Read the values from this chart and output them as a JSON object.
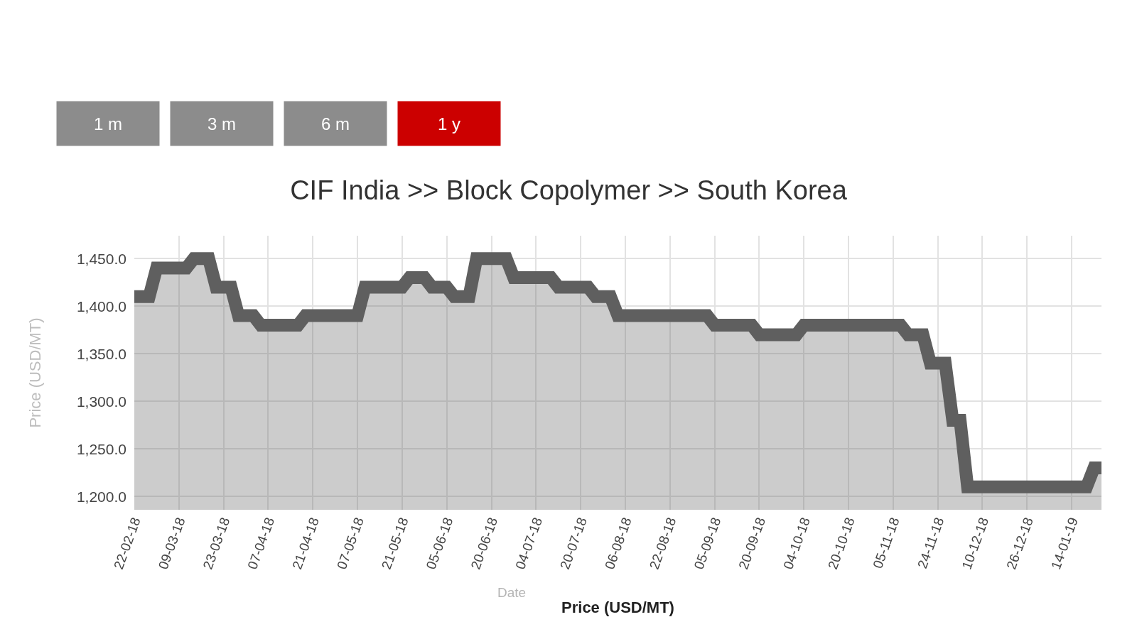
{
  "chart_data": [
    {
      "type": "other",
      "annotations": [
        "1 m",
        "3 m",
        "6 m",
        "1 y"
      ],
      "colors": [
        "#8c8c8c",
        "#8c8c8c",
        "#8c8c8c",
        "#cc0000"
      ]
    },
    {
      "type": "area",
      "title": "CIF India >> Block Copolymer >> South Korea",
      "xlabel": "Price (USD/MT)",
      "ylabel": "Price (USD/MT)",
      "annotations": [
        "Date"
      ],
      "categories": [
        "22-02-18",
        null,
        null,
        null,
        null,
        null,
        "09-03-18",
        null,
        null,
        null,
        null,
        null,
        "23-03-18",
        null,
        null,
        null,
        null,
        null,
        "07-04-18",
        null,
        null,
        null,
        null,
        null,
        "21-04-18",
        null,
        null,
        null,
        null,
        null,
        "07-05-18",
        null,
        null,
        null,
        null,
        null,
        "21-05-18",
        null,
        null,
        null,
        null,
        null,
        "05-06-18",
        null,
        null,
        null,
        null,
        null,
        "20-06-18",
        null,
        null,
        null,
        null,
        null,
        "04-07-18",
        null,
        null,
        null,
        null,
        null,
        "20-07-18",
        null,
        null,
        null,
        null,
        null,
        "06-08-18",
        null,
        null,
        null,
        null,
        null,
        "22-08-18",
        null,
        null,
        null,
        null,
        null,
        "05-09-18",
        null,
        null,
        null,
        null,
        null,
        "20-09-18",
        null,
        null,
        null,
        null,
        null,
        "04-10-18",
        null,
        null,
        null,
        null,
        null,
        "20-10-18",
        null,
        null,
        null,
        null,
        null,
        "05-11-18",
        null,
        null,
        null,
        null,
        null,
        "24-11-18",
        null,
        null,
        null,
        null,
        null,
        "10-12-18",
        null,
        null,
        null,
        null,
        null,
        "26-12-18",
        null,
        null,
        null,
        null,
        null,
        "14-01-19",
        null,
        null,
        null,
        null
      ],
      "values": [
        1410,
        1410,
        1410,
        1440,
        1440,
        1440,
        1440,
        1440,
        1450,
        1450,
        1450,
        1420,
        1420,
        1420,
        1390,
        1390,
        1390,
        1380,
        1380,
        1380,
        1380,
        1380,
        1380,
        1390,
        1390,
        1390,
        1390,
        1390,
        1390,
        1390,
        1390,
        1420,
        1420,
        1420,
        1420,
        1420,
        1420,
        1430,
        1430,
        1430,
        1420,
        1420,
        1420,
        1410,
        1410,
        1410,
        1450,
        1450,
        1450,
        1450,
        1450,
        1430,
        1430,
        1430,
        1430,
        1430,
        1430,
        1420,
        1420,
        1420,
        1420,
        1420,
        1410,
        1410,
        1410,
        1390,
        1390,
        1390,
        1390,
        1390,
        1390,
        1390,
        1390,
        1390,
        1390,
        1390,
        1390,
        1390,
        1380,
        1380,
        1380,
        1380,
        1380,
        1380,
        1370,
        1370,
        1370,
        1370,
        1370,
        1370,
        1380,
        1380,
        1380,
        1380,
        1380,
        1380,
        1380,
        1380,
        1380,
        1380,
        1380,
        1380,
        1380,
        1380,
        1370,
        1370,
        1370,
        1340,
        1340,
        1340,
        1280,
        1280,
        1210,
        1210,
        1210,
        1210,
        1210,
        1210,
        1210,
        1210,
        1210,
        1210,
        1210,
        1210,
        1210,
        1210,
        1210,
        1210,
        1210,
        1230,
        1230
      ],
      "color": "#5f5f5f",
      "line_style": "solid",
      "grid": true,
      "ylim": [
        1186,
        1474
      ],
      "yticks": [
        {
          "value": 1200,
          "label": "1,200.0"
        },
        {
          "value": 1250,
          "label": "1,250.0"
        },
        {
          "value": 1300,
          "label": "1,300.0"
        },
        {
          "value": 1350,
          "label": "1,350.0"
        },
        {
          "value": 1400,
          "label": "1,400.0"
        },
        {
          "value": 1450,
          "label": "1,450.0"
        }
      ]
    }
  ]
}
